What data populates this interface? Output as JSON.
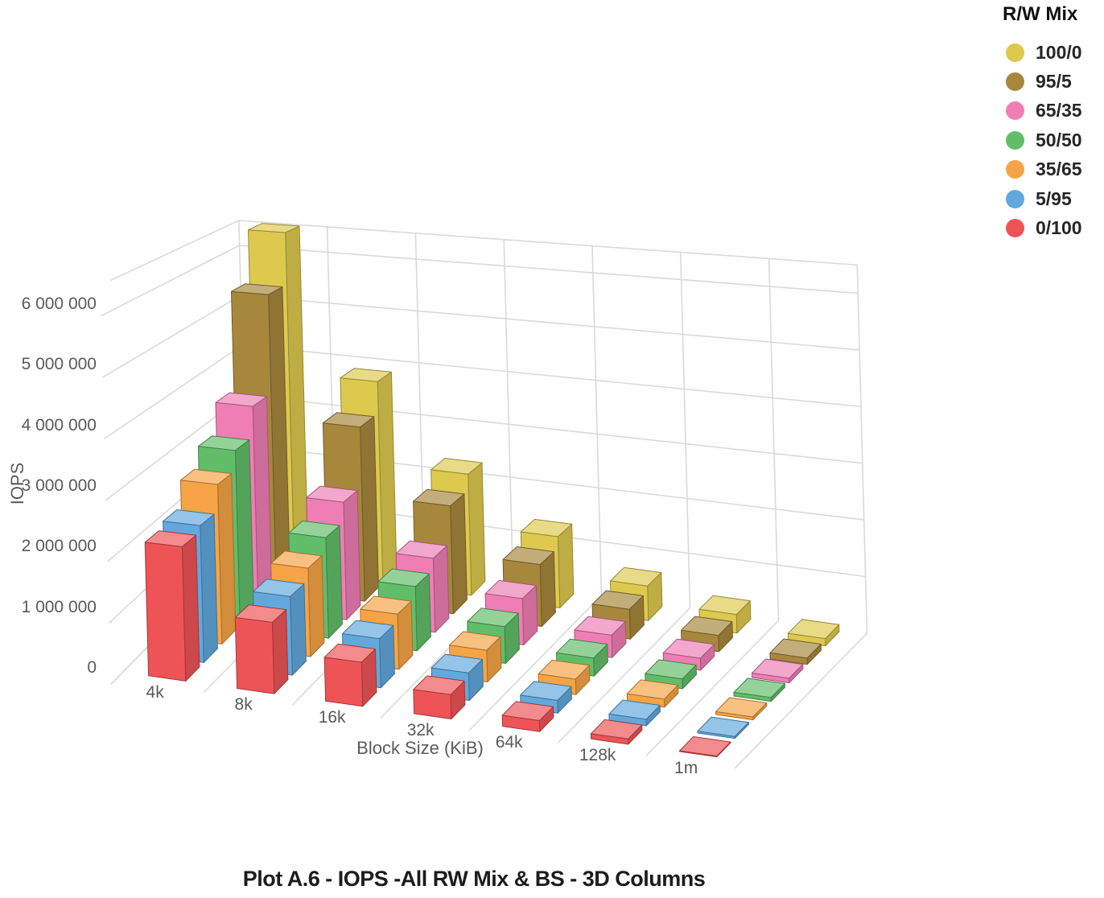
{
  "chart_data": {
    "type": "bar",
    "variant": "3d-columns",
    "title": "Plot A.6 - IOPS -All RW Mix & BS - 3D Columns",
    "xlabel": "Block Size (KiB)",
    "ylabel": "IOPS",
    "legend_title": "R/W Mix",
    "legend_position": "top-right",
    "grid": true,
    "categories": [
      "4k",
      "8k",
      "16k",
      "32k",
      "64k",
      "128k",
      "1m"
    ],
    "y_ticks": {
      "values": [
        0,
        1000000,
        2000000,
        3000000,
        4000000,
        5000000,
        6000000
      ],
      "labels": [
        "0",
        "1 000 000",
        "2 000 000",
        "3 000 000",
        "4 000 000",
        "5 000 000",
        "6 000 000"
      ]
    },
    "ylim": [
      0,
      6500000
    ],
    "series": [
      {
        "name": "100/0",
        "color": "#ddc94e",
        "values": [
          6500000,
          3800000,
          2250000,
          1300000,
          620000,
          330000,
          125000
        ]
      },
      {
        "name": "95/5",
        "color": "#a7873c",
        "values": [
          5500000,
          3200000,
          1950000,
          1100000,
          520000,
          280000,
          105000
        ]
      },
      {
        "name": "65/35",
        "color": "#ef7eb5",
        "values": [
          3650000,
          2100000,
          1300000,
          800000,
          380000,
          200000,
          75000
        ]
      },
      {
        "name": "50/50",
        "color": "#62bd69",
        "values": [
          3100000,
          1750000,
          1100000,
          620000,
          300000,
          160000,
          60000
        ]
      },
      {
        "name": "35/65",
        "color": "#f6a445",
        "values": [
          2750000,
          1500000,
          920000,
          520000,
          250000,
          130000,
          45000
        ]
      },
      {
        "name": "5/95",
        "color": "#62a8dc",
        "values": [
          2300000,
          1300000,
          800000,
          440000,
          200000,
          100000,
          30000
        ]
      },
      {
        "name": "0/100",
        "color": "#ee5456",
        "values": [
          2200000,
          1150000,
          700000,
          380000,
          170000,
          80000,
          12000
        ]
      }
    ],
    "series_depth_order": "first-series-at-back",
    "colors": {
      "axis_text": "#5a5a5a",
      "title_text": "#1c1c1c",
      "legend_text": "#262626",
      "grid": "#dadada",
      "background": "#ffffff"
    }
  }
}
